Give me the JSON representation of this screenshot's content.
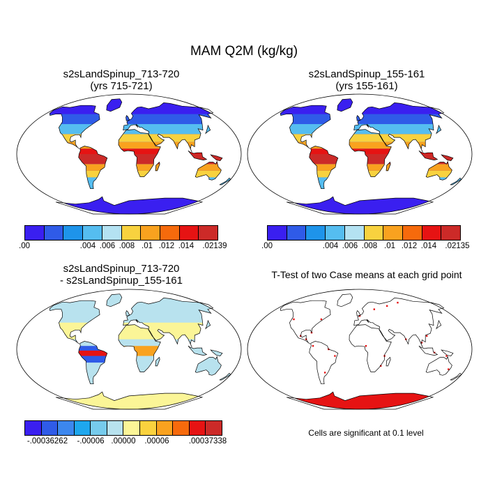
{
  "main_title": "MAM Q2M (kg/kg)",
  "panels": {
    "p1": {
      "title1": "s2sLandSpinup_713-720",
      "title2": "(yrs 715-721)"
    },
    "p2": {
      "title1": "s2sLandSpinup_155-161",
      "title2": "(yrs 155-161)"
    },
    "p3": {
      "title1": "s2sLandSpinup_713-720",
      "title2": "- s2sLandSpinup_155-161"
    },
    "p4": {
      "title1": "T-Test of two Case means at each grid point",
      "note": "Cells are significant at 0.1 level"
    }
  },
  "colorbars": {
    "cb1": {
      "colors": [
        "#3a1ff0",
        "#2f5be8",
        "#1e94ea",
        "#55bdf0",
        "#b4e2f2",
        "#f8d23f",
        "#f9a21f",
        "#f66a0c",
        "#e61313",
        "#cc2a28"
      ],
      "labels": [
        ".00",
        ".004",
        ".006",
        ".008",
        ".01",
        ".012",
        ".014",
        ".02139"
      ]
    },
    "cb2": {
      "colors": [
        "#3a1ff0",
        "#2f5be8",
        "#1e94ea",
        "#55bdf0",
        "#b4e2f2",
        "#f8d23f",
        "#f9a21f",
        "#f66a0c",
        "#e61313",
        "#cc2a28"
      ],
      "labels": [
        ".00",
        ".004",
        ".006",
        ".008",
        ".01",
        ".012",
        ".014",
        ".02135"
      ]
    },
    "cb3": {
      "colors": [
        "#3a1ff0",
        "#2f5be8",
        "#3c87ee",
        "#1ea7ee",
        "#76cbec",
        "#b8e2ee",
        "#fbf597",
        "#fad23e",
        "#f9a21f",
        "#f66a0c",
        "#e61313",
        "#cc2a28"
      ],
      "labels": [
        "-.00036262",
        "-.00006",
        ".00000",
        ".00006",
        ".00037338"
      ]
    }
  },
  "map_colors": {
    "ocean": "#ffffff",
    "coast": "#000000",
    "dry": "#3a1ff0",
    "cold": "#2f5be8",
    "mid": "#55bdf0",
    "warm": "#f8d23f",
    "hot": "#f9a21f",
    "humid": "#e61313",
    "wettest": "#cc2a28",
    "diff_neutral": "#fbf597",
    "diff_light": "#b8e2ee",
    "signif": "#e61313"
  }
}
